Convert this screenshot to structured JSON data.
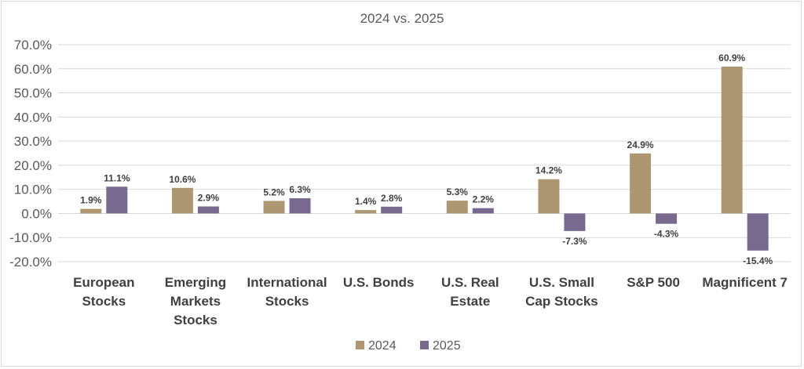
{
  "chart_data": {
    "type": "bar",
    "title": "2024 vs. 2025",
    "categories": [
      [
        "European",
        "Stocks"
      ],
      [
        "Emerging",
        "Markets",
        "Stocks"
      ],
      [
        "International",
        "Stocks"
      ],
      [
        "U.S. Bonds"
      ],
      [
        "U.S. Real",
        "Estate"
      ],
      [
        "U.S. Small",
        "Cap Stocks"
      ],
      [
        "S&P 500"
      ],
      [
        "Magnificent 7"
      ]
    ],
    "series": [
      {
        "name": "2024",
        "color": "#ad9672",
        "values": [
          1.9,
          10.6,
          5.2,
          1.4,
          5.3,
          14.2,
          24.9,
          60.9
        ],
        "labels": [
          "1.9%",
          "10.6%",
          "5.2%",
          "1.4%",
          "5.3%",
          "14.2%",
          "24.9%",
          "60.9%"
        ]
      },
      {
        "name": "2025",
        "color": "#776a8e",
        "values": [
          11.1,
          2.9,
          6.3,
          2.8,
          2.2,
          -7.3,
          -4.3,
          -15.4
        ],
        "labels": [
          "11.1%",
          "2.9%",
          "6.3%",
          "2.8%",
          "2.2%",
          "-7.3%",
          "-4.3%",
          "-15.4%"
        ]
      }
    ],
    "ylim": [
      -20,
      70
    ],
    "yticks": [
      70,
      60,
      50,
      40,
      30,
      20,
      10,
      0,
      -10,
      -20
    ],
    "ytick_labels": [
      "70.0%",
      "60.0%",
      "50.0%",
      "40.0%",
      "30.0%",
      "20.0%",
      "10.0%",
      "0.0%",
      "-10.0%",
      "-20.0%"
    ],
    "grid": true,
    "legend_position": "bottom"
  }
}
